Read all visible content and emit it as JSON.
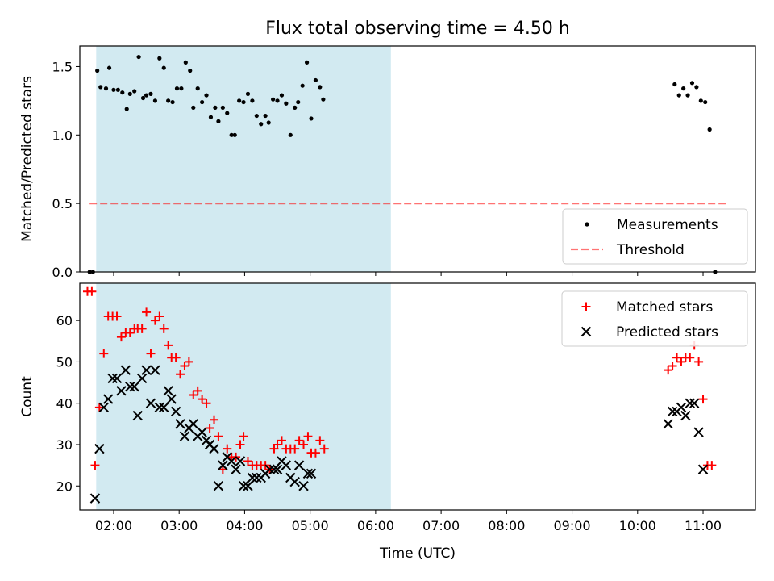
{
  "title": "Flux total observing time = 4.50 h",
  "colors": {
    "shade": "#add8e6",
    "measurement": "#000000",
    "threshold": "#ff0000",
    "matched": "#ff0000",
    "predicted": "#000000"
  },
  "chart_data": [
    {
      "type": "scatter",
      "ylabel": "Matched/Predicted stars",
      "ylim": [
        0,
        1.65
      ],
      "yticks": [
        "0.0",
        "0.5",
        "1.0",
        "1.5"
      ],
      "ytick_values": [
        0,
        0.5,
        1.0,
        1.5
      ],
      "xlim": [
        "01:29",
        "11:48"
      ],
      "x_tick_labels_shown": false,
      "shaded_interval": [
        "01:44",
        "06:14"
      ],
      "legend_position": "lower right",
      "legend": [
        "Measurements",
        "Threshold"
      ],
      "threshold": {
        "name": "Threshold",
        "value": 0.5,
        "x_range": [
          "01:38",
          "11:23"
        ],
        "style": "dashed"
      },
      "series": [
        {
          "name": "Measurements",
          "marker": "dot",
          "points": [
            [
              "01:38",
              0.0
            ],
            [
              "01:41",
              0.0
            ],
            [
              "01:45",
              1.47
            ],
            [
              "01:48",
              1.35
            ],
            [
              "01:53",
              1.34
            ],
            [
              "01:56",
              1.49
            ],
            [
              "02:00",
              1.33
            ],
            [
              "02:04",
              1.33
            ],
            [
              "02:08",
              1.31
            ],
            [
              "02:12",
              1.19
            ],
            [
              "02:15",
              1.3
            ],
            [
              "02:19",
              1.32
            ],
            [
              "02:23",
              1.57
            ],
            [
              "02:27",
              1.27
            ],
            [
              "02:30",
              1.29
            ],
            [
              "02:34",
              1.3
            ],
            [
              "02:38",
              1.25
            ],
            [
              "02:42",
              1.56
            ],
            [
              "02:46",
              1.49
            ],
            [
              "02:50",
              1.25
            ],
            [
              "02:54",
              1.24
            ],
            [
              "02:58",
              1.34
            ],
            [
              "03:02",
              1.34
            ],
            [
              "03:06",
              1.53
            ],
            [
              "03:10",
              1.47
            ],
            [
              "03:13",
              1.2
            ],
            [
              "03:17",
              1.34
            ],
            [
              "03:21",
              1.24
            ],
            [
              "03:25",
              1.29
            ],
            [
              "03:29",
              1.13
            ],
            [
              "03:33",
              1.2
            ],
            [
              "03:36",
              1.1
            ],
            [
              "03:40",
              1.2
            ],
            [
              "03:44",
              1.16
            ],
            [
              "03:48",
              1.0
            ],
            [
              "03:51",
              1.0
            ],
            [
              "03:55",
              1.25
            ],
            [
              "03:59",
              1.24
            ],
            [
              "04:03",
              1.3
            ],
            [
              "04:07",
              1.25
            ],
            [
              "04:11",
              1.14
            ],
            [
              "04:15",
              1.08
            ],
            [
              "04:19",
              1.14
            ],
            [
              "04:22",
              1.09
            ],
            [
              "04:26",
              1.26
            ],
            [
              "04:30",
              1.25
            ],
            [
              "04:34",
              1.29
            ],
            [
              "04:38",
              1.23
            ],
            [
              "04:42",
              1.0
            ],
            [
              "04:46",
              1.2
            ],
            [
              "04:49",
              1.24
            ],
            [
              "04:53",
              1.36
            ],
            [
              "04:57",
              1.53
            ],
            [
              "05:01",
              1.12
            ],
            [
              "05:05",
              1.4
            ],
            [
              "05:09",
              1.35
            ],
            [
              "05:12",
              1.26
            ],
            [
              "10:34",
              1.37
            ],
            [
              "10:38",
              1.29
            ],
            [
              "10:42",
              1.34
            ],
            [
              "10:46",
              1.29
            ],
            [
              "10:50",
              1.38
            ],
            [
              "10:54",
              1.35
            ],
            [
              "10:58",
              1.25
            ],
            [
              "11:02",
              1.24
            ],
            [
              "11:06",
              1.04
            ],
            [
              "11:11",
              0.0
            ]
          ]
        }
      ]
    },
    {
      "type": "scatter",
      "xlabel": "Time (UTC)",
      "ylabel": "Count",
      "ylim": [
        14.2,
        69
      ],
      "yticks": [
        "20",
        "30",
        "40",
        "50",
        "60"
      ],
      "ytick_values": [
        20,
        30,
        40,
        50,
        60
      ],
      "xlim": [
        "01:29",
        "11:48"
      ],
      "xticks": [
        "02:00",
        "03:00",
        "04:00",
        "05:00",
        "06:00",
        "07:00",
        "08:00",
        "09:00",
        "10:00",
        "11:00"
      ],
      "shaded_interval": [
        "01:44",
        "06:14"
      ],
      "legend_position": "upper right",
      "legend": [
        "Matched stars",
        "Predicted stars"
      ],
      "series": [
        {
          "name": "Matched stars",
          "marker": "plus",
          "points": [
            [
              "01:36",
              67
            ],
            [
              "01:40",
              67
            ],
            [
              "01:43",
              25
            ],
            [
              "01:47",
              39
            ],
            [
              "01:51",
              52
            ],
            [
              "01:55",
              61
            ],
            [
              "01:59",
              61
            ],
            [
              "02:03",
              61
            ],
            [
              "02:07",
              56
            ],
            [
              "02:11",
              57
            ],
            [
              "02:15",
              57
            ],
            [
              "02:19",
              58
            ],
            [
              "02:22",
              58
            ],
            [
              "02:26",
              58
            ],
            [
              "02:30",
              62
            ],
            [
              "02:34",
              52
            ],
            [
              "02:38",
              60
            ],
            [
              "02:42",
              61
            ],
            [
              "02:46",
              58
            ],
            [
              "02:50",
              54
            ],
            [
              "02:53",
              51
            ],
            [
              "02:57",
              51
            ],
            [
              "03:01",
              47
            ],
            [
              "03:05",
              49
            ],
            [
              "03:09",
              50
            ],
            [
              "03:13",
              42
            ],
            [
              "03:17",
              43
            ],
            [
              "03:21",
              41
            ],
            [
              "03:25",
              40
            ],
            [
              "03:28",
              34
            ],
            [
              "03:32",
              36
            ],
            [
              "03:36",
              32
            ],
            [
              "03:40",
              24
            ],
            [
              "03:44",
              29
            ],
            [
              "03:48",
              27
            ],
            [
              "03:52",
              27
            ],
            [
              "03:56",
              30
            ],
            [
              "03:59",
              32
            ],
            [
              "04:03",
              26
            ],
            [
              "04:07",
              25
            ],
            [
              "04:11",
              25
            ],
            [
              "04:15",
              25
            ],
            [
              "04:19",
              25
            ],
            [
              "04:23",
              24
            ],
            [
              "04:27",
              29
            ],
            [
              "04:30",
              30
            ],
            [
              "04:34",
              31
            ],
            [
              "04:38",
              29
            ],
            [
              "04:42",
              29
            ],
            [
              "04:46",
              29
            ],
            [
              "04:50",
              31
            ],
            [
              "04:54",
              30
            ],
            [
              "04:58",
              32
            ],
            [
              "05:01",
              28
            ],
            [
              "05:05",
              28
            ],
            [
              "05:09",
              31
            ],
            [
              "05:13",
              29
            ],
            [
              "10:28",
              48
            ],
            [
              "10:32",
              49
            ],
            [
              "10:36",
              51
            ],
            [
              "10:40",
              50
            ],
            [
              "10:44",
              51
            ],
            [
              "10:48",
              51
            ],
            [
              "10:52",
              54
            ],
            [
              "10:56",
              50
            ],
            [
              "11:00",
              41
            ],
            [
              "11:04",
              25
            ],
            [
              "11:08",
              25
            ]
          ]
        },
        {
          "name": "Predicted stars",
          "marker": "x",
          "points": [
            [
              "01:43",
              17
            ],
            [
              "01:47",
              29
            ],
            [
              "01:51",
              39
            ],
            [
              "01:55",
              41
            ],
            [
              "01:59",
              46
            ],
            [
              "02:03",
              46
            ],
            [
              "02:07",
              43
            ],
            [
              "02:11",
              48
            ],
            [
              "02:15",
              44
            ],
            [
              "02:19",
              44
            ],
            [
              "02:22",
              37
            ],
            [
              "02:26",
              46
            ],
            [
              "02:30",
              48
            ],
            [
              "02:34",
              40
            ],
            [
              "02:38",
              48
            ],
            [
              "02:42",
              39
            ],
            [
              "02:46",
              39
            ],
            [
              "02:50",
              43
            ],
            [
              "02:53",
              41
            ],
            [
              "02:57",
              38
            ],
            [
              "03:01",
              35
            ],
            [
              "03:05",
              32
            ],
            [
              "03:09",
              34
            ],
            [
              "03:13",
              35
            ],
            [
              "03:17",
              32
            ],
            [
              "03:21",
              33
            ],
            [
              "03:25",
              31
            ],
            [
              "03:28",
              30
            ],
            [
              "03:32",
              29
            ],
            [
              "03:36",
              20
            ],
            [
              "03:40",
              25
            ],
            [
              "03:44",
              27
            ],
            [
              "03:48",
              26
            ],
            [
              "03:52",
              24
            ],
            [
              "03:56",
              26
            ],
            [
              "03:59",
              20
            ],
            [
              "04:03",
              20
            ],
            [
              "04:07",
              22
            ],
            [
              "04:11",
              22
            ],
            [
              "04:15",
              22
            ],
            [
              "04:19",
              23
            ],
            [
              "04:23",
              24
            ],
            [
              "04:27",
              24
            ],
            [
              "04:30",
              24
            ],
            [
              "04:34",
              26
            ],
            [
              "04:38",
              25
            ],
            [
              "04:42",
              22
            ],
            [
              "04:46",
              21
            ],
            [
              "04:50",
              25
            ],
            [
              "04:54",
              20
            ],
            [
              "04:58",
              23
            ],
            [
              "05:01",
              23
            ],
            [
              "10:28",
              35
            ],
            [
              "10:32",
              38
            ],
            [
              "10:36",
              38
            ],
            [
              "10:40",
              39
            ],
            [
              "10:44",
              37
            ],
            [
              "10:48",
              40
            ],
            [
              "10:52",
              40
            ],
            [
              "10:56",
              33
            ],
            [
              "11:00",
              24
            ]
          ]
        }
      ]
    }
  ]
}
